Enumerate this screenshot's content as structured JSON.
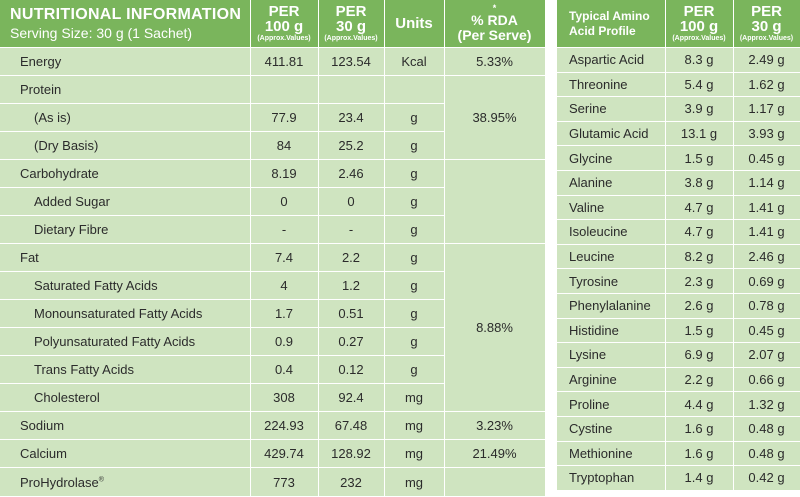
{
  "nutrition": {
    "title": "NUTRITIONAL INFORMATION",
    "serving": "Serving Size: 30 g (1 Sachet)",
    "col_per100": "PER",
    "col_per100_b": "100 g",
    "col_per100_sub": "(Approx.Values)",
    "col_per30": "PER",
    "col_per30_b": "30 g",
    "col_per30_sub": "(Approx.Values)",
    "col_units": "Units",
    "col_rda_star": "*",
    "col_rda": "% RDA",
    "col_rda_b": "(Per Serve)",
    "rows": [
      {
        "name": "Energy",
        "per100": "411.81",
        "per30": "123.54",
        "unit": "Kcal",
        "rda": "5.33%"
      },
      {
        "name": "Protein",
        "per100": "",
        "per30": "",
        "unit": "",
        "rda": ""
      },
      {
        "name": "(As is)",
        "per100": "77.9",
        "per30": "23.4",
        "unit": "g",
        "rda": "38.95%"
      },
      {
        "name": "(Dry Basis)",
        "per100": "84",
        "per30": "25.2",
        "unit": "g",
        "rda": ""
      },
      {
        "name": "Carbohydrate",
        "per100": "8.19",
        "per30": "2.46",
        "unit": "g",
        "rda": ""
      },
      {
        "name": "Added Sugar",
        "per100": "0",
        "per30": "0",
        "unit": "g",
        "rda": ""
      },
      {
        "name": "Dietary Fibre",
        "per100": "-",
        "per30": "-",
        "unit": "g",
        "rda": ""
      },
      {
        "name": "Fat",
        "per100": "7.4",
        "per30": "2.2",
        "unit": "g",
        "rda": "8.88%"
      },
      {
        "name": "Saturated Fatty Acids",
        "per100": "4",
        "per30": "1.2",
        "unit": "g",
        "rda": ""
      },
      {
        "name": "Monounsaturated Fatty Acids",
        "per100": "1.7",
        "per30": "0.51",
        "unit": "g",
        "rda": ""
      },
      {
        "name": "Polyunsaturated Fatty Acids",
        "per100": "0.9",
        "per30": "0.27",
        "unit": "g",
        "rda": ""
      },
      {
        "name": "Trans Fatty Acids",
        "per100": "0.4",
        "per30": "0.12",
        "unit": "g",
        "rda": ""
      },
      {
        "name": "Cholesterol",
        "per100": "308",
        "per30": "92.4",
        "unit": "mg",
        "rda": ""
      },
      {
        "name": "Sodium",
        "per100": "224.93",
        "per30": "67.48",
        "unit": "mg",
        "rda": "3.23%"
      },
      {
        "name": "Calcium",
        "per100": "429.74",
        "per30": "128.92",
        "unit": "mg",
        "rda": "21.49%"
      },
      {
        "name": "ProHydrolase",
        "sup": "®",
        "per100": "773",
        "per30": "232",
        "unit": "mg",
        "rda": ""
      }
    ]
  },
  "amino": {
    "title": "Typical Amino Acid Profile",
    "col_per100": "PER",
    "col_per100_b": "100 g",
    "col_per100_sub": "(Approx.Values)",
    "col_per30": "PER",
    "col_per30_b": "30 g",
    "col_per30_sub": "(Approx.Values)",
    "rows": [
      {
        "name": "Aspartic Acid",
        "per100": "8.3 g",
        "per30": "2.49 g"
      },
      {
        "name": "Threonine",
        "per100": "5.4 g",
        "per30": "1.62 g"
      },
      {
        "name": "Serine",
        "per100": "3.9 g",
        "per30": "1.17 g"
      },
      {
        "name": "Glutamic Acid",
        "per100": "13.1 g",
        "per30": "3.93 g"
      },
      {
        "name": "Glycine",
        "per100": "1.5 g",
        "per30": "0.45 g"
      },
      {
        "name": "Alanine",
        "per100": "3.8 g",
        "per30": "1.14 g"
      },
      {
        "name": "Valine",
        "per100": "4.7 g",
        "per30": "1.41 g"
      },
      {
        "name": "Isoleucine",
        "per100": "4.7 g",
        "per30": "1.41 g"
      },
      {
        "name": "Leucine",
        "per100": "8.2 g",
        "per30": "2.46 g"
      },
      {
        "name": "Tyrosine",
        "per100": "2.3 g",
        "per30": "0.69 g"
      },
      {
        "name": "Phenylalanine",
        "per100": "2.6 g",
        "per30": "0.78 g"
      },
      {
        "name": "Histidine",
        "per100": "1.5 g",
        "per30": "0.45 g"
      },
      {
        "name": "Lysine",
        "per100": "6.9 g",
        "per30": "2.07 g"
      },
      {
        "name": "Arginine",
        "per100": "2.2 g",
        "per30": "0.66 g"
      },
      {
        "name": "Proline",
        "per100": "4.4 g",
        "per30": "1.32 g"
      },
      {
        "name": "Cystine",
        "per100": "1.6 g",
        "per30": "0.48 g"
      },
      {
        "name": "Methionine",
        "per100": "1.6 g",
        "per30": "0.48 g"
      },
      {
        "name": "Tryptophan",
        "per100": "1.4 g",
        "per30": "0.42 g"
      }
    ]
  },
  "colors": {
    "header_green": "#7ab55c",
    "cell_green": "#cfe4c0",
    "text": "#2b2b2b"
  }
}
